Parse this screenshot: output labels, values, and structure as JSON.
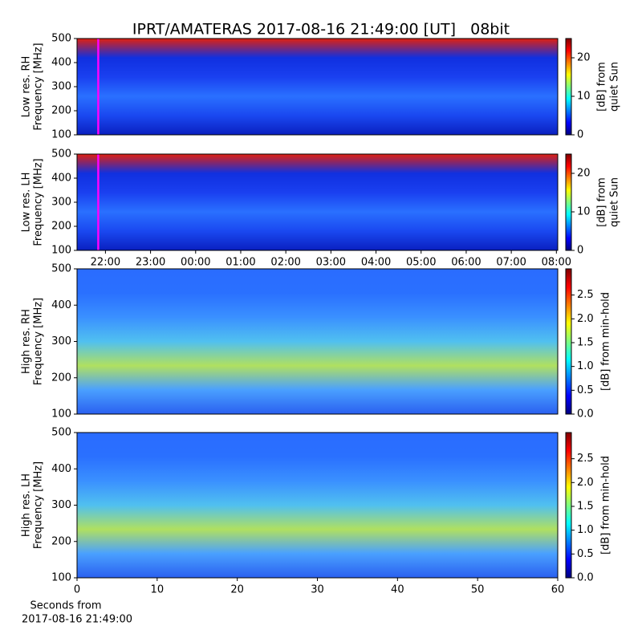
{
  "title": "IPRT/AMATERAS 2017-08-16 21:49:00 [UT]   08bit",
  "colormap": [
    "#00007f",
    "#0000ff",
    "#007fff",
    "#00ffff",
    "#7fff7f",
    "#ffff00",
    "#ff7f00",
    "#ff0000",
    "#7f0000"
  ],
  "chart_data": [
    {
      "type": "spectrogram",
      "ylabel": [
        "Low res. RH",
        "Frequency [MHz]"
      ],
      "ylim": [
        100,
        500
      ],
      "yticks": [
        100,
        200,
        300,
        400,
        500
      ],
      "xlim": [
        21.37,
        32.03
      ],
      "marker": {
        "x": 21.84,
        "color": "#ff00ff"
      },
      "image_colors": [
        "#e02010",
        "#1030e0",
        "#1a40f0",
        "#2a70ff",
        "#1a48f0",
        "#0a20c0"
      ],
      "colorbar": {
        "label": [
          "[dB] from",
          "quiet Sun"
        ],
        "lim": [
          0,
          25
        ],
        "ticks": [
          0,
          10,
          20
        ]
      }
    },
    {
      "type": "spectrogram",
      "ylabel": [
        "Low res. LH",
        "Frequency [MHz]"
      ],
      "ylim": [
        100,
        500
      ],
      "yticks": [
        100,
        200,
        300,
        400,
        500
      ],
      "xlim": [
        21.37,
        32.03
      ],
      "xticks": [
        {
          "value": 22,
          "label": "22:00"
        },
        {
          "value": 23,
          "label": "23:00"
        },
        {
          "value": 24,
          "label": "00:00"
        },
        {
          "value": 25,
          "label": "01:00"
        },
        {
          "value": 26,
          "label": "02:00"
        },
        {
          "value": 27,
          "label": "03:00"
        },
        {
          "value": 28,
          "label": "04:00"
        },
        {
          "value": 29,
          "label": "05:00"
        },
        {
          "value": 30,
          "label": "06:00"
        },
        {
          "value": 31,
          "label": "07:00"
        },
        {
          "value": 32,
          "label": "08:00"
        }
      ],
      "marker": {
        "x": 21.84,
        "color": "#ff00ff"
      },
      "image_colors": [
        "#e02010",
        "#1030e0",
        "#1a40f0",
        "#2a70ff",
        "#1a48f0",
        "#0a20c0"
      ],
      "colorbar": {
        "label": [
          "[dB] from",
          "quiet Sun"
        ],
        "lim": [
          0,
          25
        ],
        "ticks": [
          0,
          10,
          20
        ]
      }
    },
    {
      "type": "spectrogram",
      "ylabel": [
        "High res. RH",
        "Frequency [MHz]"
      ],
      "ylim": [
        100,
        500
      ],
      "yticks": [
        100,
        200,
        300,
        400,
        500
      ],
      "xlim": [
        0,
        60
      ],
      "image_colors": [
        "#2a6cff",
        "#2a70ff",
        "#3a90ff",
        "#50c0f0",
        "#b0e060",
        "#4aa0ff",
        "#2a60f0"
      ],
      "colorbar": {
        "label": [
          "[dB] from min-hold"
        ],
        "lim": [
          0,
          3.05
        ],
        "ticks": [
          {
            "value": 0,
            "label": "0.0"
          },
          0.5,
          {
            "value": 1,
            "label": "1.0"
          },
          1.5,
          {
            "value": 2,
            "label": "2.0"
          },
          2.5
        ]
      }
    },
    {
      "type": "spectrogram",
      "ylabel": [
        "High res. LH",
        "Frequency [MHz]"
      ],
      "ylim": [
        100,
        500
      ],
      "yticks": [
        100,
        200,
        300,
        400,
        500
      ],
      "xlim": [
        0,
        60
      ],
      "xticks": [
        0,
        10,
        20,
        30,
        40,
        50,
        60
      ],
      "xlabel": [
        "Seconds from",
        "2017-08-16 21:49:00"
      ],
      "image_colors": [
        "#2a6cff",
        "#2a70ff",
        "#3a90ff",
        "#50c0f0",
        "#b0e060",
        "#4aa0ff",
        "#2a60f0"
      ],
      "colorbar": {
        "label": [
          "[dB] from min-hold"
        ],
        "lim": [
          0,
          3.05
        ],
        "ticks": [
          {
            "value": 0,
            "label": "0.0"
          },
          0.5,
          {
            "value": 1,
            "label": "1.0"
          },
          1.5,
          {
            "value": 2,
            "label": "2.0"
          },
          2.5
        ]
      }
    }
  ]
}
